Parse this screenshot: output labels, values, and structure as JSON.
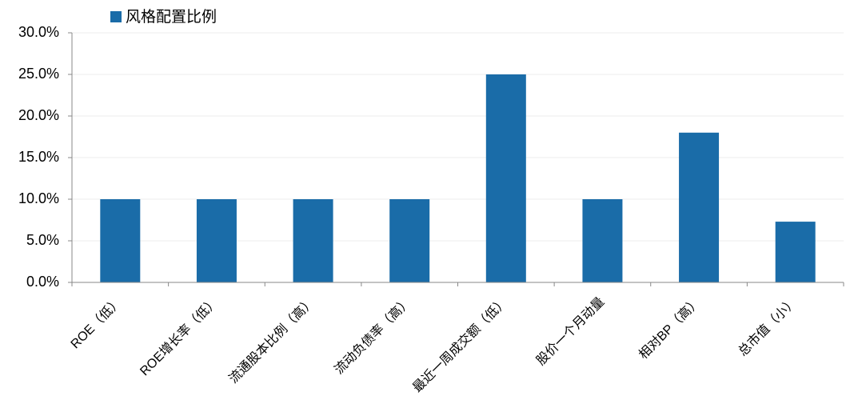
{
  "chart_data": {
    "type": "bar",
    "categories": [
      "ROE（低）",
      "ROE增长率（低）",
      "流通股本比例（高）",
      "流动负债率（高）",
      "最近一周成交额（低）",
      "股价一个月动量",
      "相对BP（高）",
      "总市值（小）"
    ],
    "series": [
      {
        "name": "风格配置比例",
        "color": "#1a6ca8",
        "values": [
          10,
          10,
          10,
          10,
          25,
          10,
          18,
          7.3
        ]
      }
    ],
    "ylim": [
      0,
      30
    ],
    "yticks": [
      {
        "value": 0,
        "label": "0.0%"
      },
      {
        "value": 5,
        "label": "5.0%"
      },
      {
        "value": 10,
        "label": "10.0%"
      },
      {
        "value": 15,
        "label": "15.0%"
      },
      {
        "value": 20,
        "label": "20.0%"
      },
      {
        "value": 25,
        "label": "25.0%"
      },
      {
        "value": 30,
        "label": "30.0%"
      }
    ],
    "grid": true,
    "legend": "top"
  }
}
